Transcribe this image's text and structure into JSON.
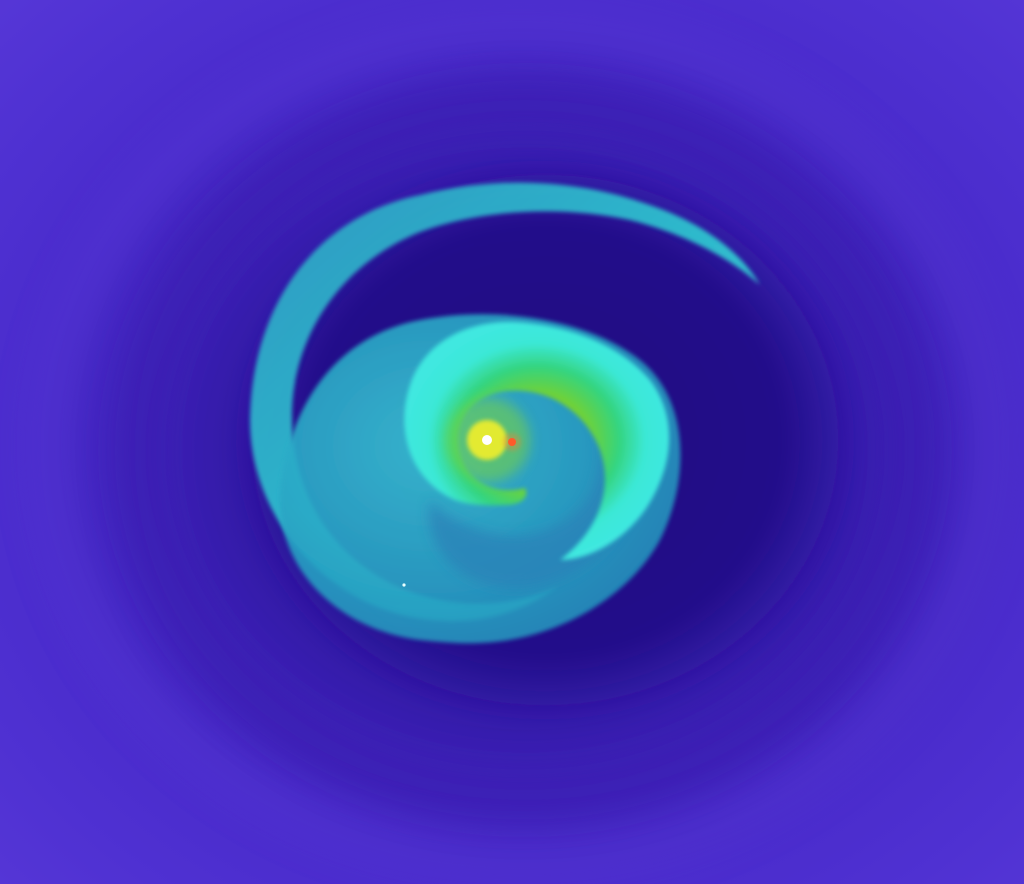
{
  "image": {
    "subject": "spiral-disk-simulation-render",
    "colors": {
      "outer_field": "#4f2fd0",
      "outer_ring": "#3c1fb6",
      "inner_void": "#1c0a7a",
      "spiral_arm_outer": "#29b6cc",
      "spiral_arm_inner": "#3fe6dd",
      "core_green": "#6fd23a",
      "core_yellow": "#f2f02a",
      "core_hot": "#ffffff",
      "companion_red": "#ff4a2a"
    }
  }
}
